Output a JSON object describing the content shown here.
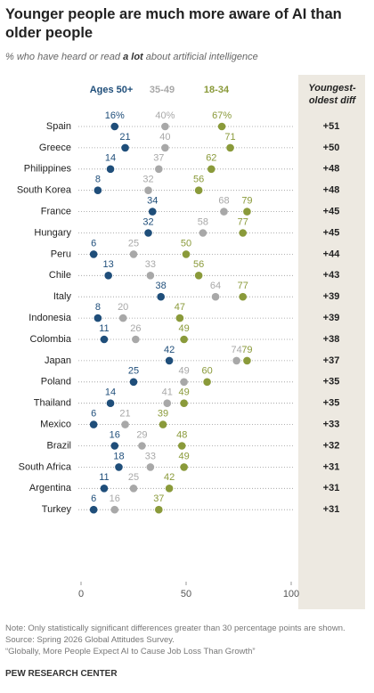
{
  "chart_data": {
    "type": "dot",
    "title": "Younger people are much more aware of AI than older people",
    "subtitle": [
      "% who have heard or read",
      "a lot",
      "about artificial intelligence"
    ],
    "categories": [
      "Spain",
      "Greece",
      "Philippines",
      "South Korea",
      "France",
      "Hungary",
      "Peru",
      "Chile",
      "Italy",
      "Indonesia",
      "Colombia",
      "Japan",
      "Poland",
      "Thailand",
      "Mexico",
      "Brazil",
      "South Africa",
      "Argentina",
      "Turkey"
    ],
    "series": [
      {
        "name": "Ages 50+",
        "color": "#1f4e7a",
        "values": [
          16,
          21,
          14,
          8,
          34,
          32,
          6,
          13,
          38,
          8,
          11,
          42,
          25,
          14,
          6,
          16,
          18,
          11,
          6
        ],
        "value_labels": [
          "16%",
          "21",
          "14",
          "8",
          "34",
          "32",
          "6",
          "13",
          "38",
          "8",
          "11",
          "42",
          "25",
          "14",
          "6",
          "16",
          "18",
          "11",
          "6"
        ]
      },
      {
        "name": "35-49",
        "color": "#a8a8a8",
        "values": [
          40,
          40,
          37,
          32,
          68,
          58,
          25,
          33,
          64,
          20,
          26,
          74,
          49,
          41,
          21,
          29,
          33,
          25,
          16
        ],
        "value_labels": [
          "40%",
          "40",
          "37",
          "32",
          "68",
          "58",
          "25",
          "33",
          "64",
          "20",
          "26",
          "74",
          "49",
          "41",
          "21",
          "29",
          "33",
          "25",
          "16"
        ]
      },
      {
        "name": "18-34",
        "color": "#8a9a3a",
        "values": [
          67,
          71,
          62,
          56,
          79,
          77,
          50,
          56,
          77,
          47,
          49,
          79,
          60,
          49,
          39,
          48,
          49,
          42,
          37
        ],
        "value_labels": [
          "67%",
          "71",
          "62",
          "56",
          "79",
          "77",
          "50",
          "56",
          "77",
          "47",
          "49",
          "79",
          "60",
          "49",
          "39",
          "48",
          "49",
          "42",
          "37"
        ]
      }
    ],
    "diff": {
      "name": "Youngest-oldest diff",
      "values": [
        51,
        50,
        48,
        48,
        45,
        45,
        44,
        43,
        39,
        39,
        38,
        37,
        35,
        35,
        33,
        32,
        31,
        31,
        31
      ],
      "value_labels": [
        "+51",
        "+50",
        "+48",
        "+48",
        "+45",
        "+45",
        "+44",
        "+43",
        "+39",
        "+39",
        "+38",
        "+37",
        "+35",
        "+35",
        "+33",
        "+32",
        "+31",
        "+31",
        "+31"
      ]
    },
    "xlim": [
      0,
      100
    ],
    "xticks": [
      0,
      50,
      100
    ],
    "notes": [
      "Note: Only statistically significant differences greater than 30 percentage points are shown.",
      "Source: Spring 2026 Global Attitudes Survey.",
      "“Globally, More People Expect AI to Cause Job Loss Than Growth”"
    ],
    "footer": "PEW RESEARCH CENTER"
  }
}
